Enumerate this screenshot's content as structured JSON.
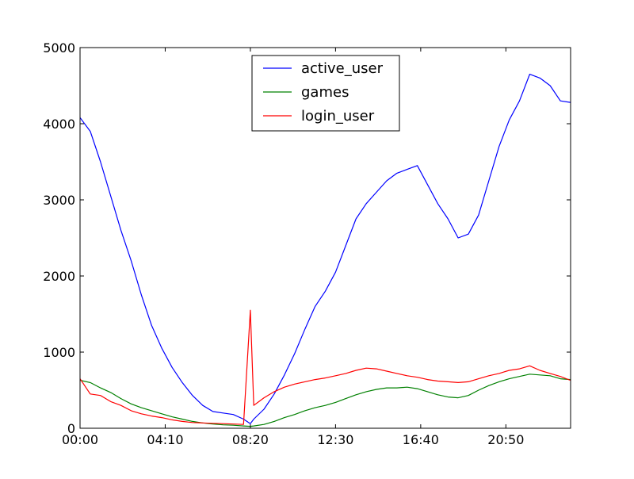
{
  "chart_data": {
    "type": "line",
    "title": "",
    "xlabel": "",
    "ylabel": "",
    "xlim_minutes": [
      0,
      1440
    ],
    "ylim": [
      0,
      5000
    ],
    "x_ticks": [
      {
        "label": "00:00",
        "value": "00:00"
      },
      {
        "label": "04:10",
        "value": "04:10"
      },
      {
        "label": "08:20",
        "value": "08:20"
      },
      {
        "label": "12:30",
        "value": "12:30"
      },
      {
        "label": "16:40",
        "value": "16:40"
      },
      {
        "label": "20:50",
        "value": "20:50"
      }
    ],
    "y_ticks": [
      0,
      1000,
      2000,
      3000,
      4000,
      5000
    ],
    "grid": false,
    "legend": "upper center",
    "x": [
      "00:00",
      "00:30",
      "01:00",
      "01:30",
      "02:00",
      "02:30",
      "03:00",
      "03:30",
      "04:00",
      "04:30",
      "05:00",
      "05:30",
      "06:00",
      "06:30",
      "07:00",
      "07:30",
      "08:00",
      "08:20",
      "08:30",
      "09:00",
      "09:30",
      "10:00",
      "10:30",
      "11:00",
      "11:30",
      "12:00",
      "12:30",
      "13:00",
      "13:30",
      "14:00",
      "14:30",
      "15:00",
      "15:30",
      "16:00",
      "16:30",
      "17:00",
      "17:30",
      "18:00",
      "18:30",
      "19:00",
      "19:30",
      "20:00",
      "20:30",
      "21:00",
      "21:30",
      "22:00",
      "22:30",
      "23:00",
      "23:30",
      "23:59"
    ],
    "series": [
      {
        "name": "active_user",
        "color": "#0000ff",
        "values": [
          4080,
          3900,
          3500,
          3050,
          2600,
          2200,
          1750,
          1350,
          1050,
          800,
          600,
          430,
          300,
          220,
          200,
          180,
          120,
          60,
          120,
          250,
          450,
          700,
          980,
          1300,
          1600,
          1800,
          2050,
          2400,
          2750,
          2950,
          3100,
          3250,
          3350,
          3400,
          3450,
          3200,
          2950,
          2750,
          2500,
          2550,
          2800,
          3250,
          3700,
          4050,
          4300,
          4650,
          4600,
          4500,
          4300,
          4280
        ]
      },
      {
        "name": "games",
        "color": "#008000",
        "values": [
          630,
          600,
          530,
          470,
          390,
          320,
          270,
          230,
          190,
          150,
          120,
          90,
          70,
          55,
          45,
          40,
          30,
          25,
          30,
          50,
          90,
          140,
          180,
          230,
          270,
          300,
          340,
          390,
          440,
          480,
          510,
          530,
          530,
          540,
          520,
          480,
          440,
          410,
          400,
          430,
          500,
          560,
          610,
          650,
          680,
          710,
          700,
          690,
          650,
          640
        ]
      },
      {
        "name": "login_user",
        "color": "#ff0000",
        "values": [
          650,
          450,
          430,
          350,
          300,
          230,
          190,
          160,
          140,
          110,
          90,
          75,
          70,
          65,
          60,
          55,
          50,
          1550,
          300,
          400,
          480,
          540,
          580,
          610,
          640,
          660,
          690,
          720,
          760,
          790,
          780,
          750,
          720,
          690,
          670,
          640,
          620,
          610,
          600,
          610,
          650,
          690,
          720,
          760,
          780,
          820,
          760,
          720,
          680,
          630
        ]
      }
    ]
  }
}
